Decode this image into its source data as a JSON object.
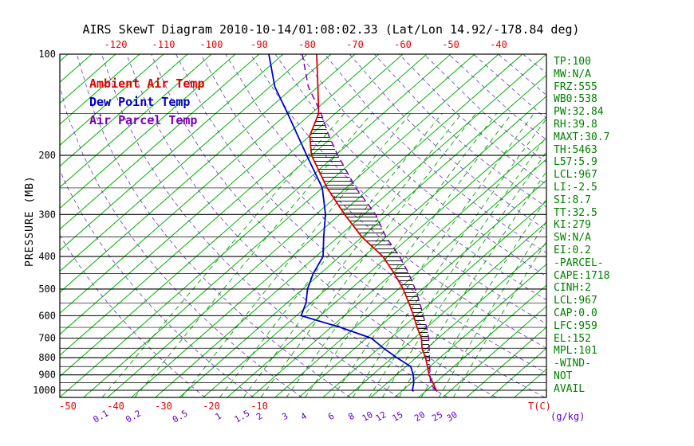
{
  "title": "AIRS SkewT Diagram 2010-10-14/01:08:02.33 (Lat/Lon 14.92/-178.84 deg)",
  "legend": [
    {
      "label": "Ambient Air Temp",
      "color": "#dd0000"
    },
    {
      "label": "Dew Point Temp",
      "color": "#0000cc"
    },
    {
      "label": "Air Parcel Temp",
      "color": "#7a00b8"
    }
  ],
  "axes": {
    "pressure_label": "PRESSURE (MB)",
    "pressure_ticks": [
      100,
      200,
      300,
      400,
      500,
      600,
      700,
      800,
      900,
      1000
    ],
    "top_temp_ticks": [
      -120,
      -110,
      -100,
      -90,
      -80,
      -70,
      -60,
      -50,
      -40
    ],
    "bottom_temp_ticks": [
      -50,
      -40,
      -30,
      -20,
      -10
    ],
    "temp_unit": "T(C)",
    "mixing_unit": "(g/kg)",
    "mixing_ratio_ticks": [
      0.1,
      0.2,
      0.5,
      1,
      1.5,
      2,
      3,
      4,
      6,
      8,
      10,
      12,
      15,
      20,
      25,
      30
    ]
  },
  "stats": [
    "TP:100",
    "MW:N/A",
    "FRZ:555",
    "WB0:538",
    "PW:32.84",
    "RH:39.8",
    "MAXT:30.7",
    "TH:5463",
    "L57:5.9",
    "LCL:967",
    "LI:-2.5",
    "SI:8.7",
    "TT:32.5",
    "KI:279",
    "SW:N/A",
    "EI:0.2",
    "-PARCEL-",
    "CAPE:1718",
    "CINH:2",
    "LCL:967",
    "CAP:0.0",
    "LFC:959",
    "EL:152",
    "MPL:101",
    "-WIND-",
    "NOT",
    "AVAIL"
  ],
  "colors": {
    "isotherm": "#00b400",
    "mixing_ratio_line": "#00a400",
    "dry_adiabat": "#6633cc",
    "isobar": "#000000",
    "frame": "#000000",
    "hatch": "#000000",
    "stats_text": "#008000",
    "top_axis_text": "#dd0000",
    "bottom_axis_text": "#dd0000",
    "mixing_label_text": "#5a00c8",
    "pressure_text": "#000000"
  },
  "chart_data": {
    "type": "line",
    "title": "AIRS SkewT Diagram 2010-10-14/01:08:02.33 (Lat/Lon 14.92/-178.84 deg)",
    "x_axis": {
      "label": "T(C)",
      "top_ticks": [
        -120,
        -110,
        -100,
        -90,
        -80,
        -70,
        -60,
        -50,
        -40
      ],
      "bottom_ticks": [
        -50,
        -40,
        -30,
        -20,
        -10
      ]
    },
    "y_axis": {
      "label": "PRESSURE (MB)",
      "scale": "log",
      "ticks": [
        100,
        200,
        300,
        400,
        500,
        600,
        700,
        800,
        900,
        1000
      ],
      "range": [
        100,
        1050
      ]
    },
    "background": {
      "isotherm_step_c": 5,
      "isotherm_range_c": [
        -130,
        45
      ],
      "dry_adiabat_theta_k": {
        "from": 250,
        "to": 460,
        "step": 10
      },
      "mixing_ratio_lines_gkg": [
        0.1,
        0.2,
        0.5,
        1,
        1.5,
        2,
        3,
        4,
        6,
        8,
        10,
        12,
        15,
        20,
        25,
        30
      ],
      "isobar_step_mb": 50,
      "grid": true
    },
    "legend_position": "top-left",
    "series": [
      {
        "name": "Ambient Air Temp",
        "color": "#dd0000",
        "style": "solid",
        "points": [
          [
            1008,
            27.5
          ],
          [
            1000,
            27
          ],
          [
            950,
            24.5
          ],
          [
            900,
            21.8
          ],
          [
            850,
            19.5
          ],
          [
            800,
            17
          ],
          [
            750,
            14
          ],
          [
            700,
            11.5
          ],
          [
            650,
            8
          ],
          [
            600,
            4.5
          ],
          [
            550,
            0.5
          ],
          [
            500,
            -4
          ],
          [
            450,
            -9.5
          ],
          [
            400,
            -16
          ],
          [
            350,
            -25
          ],
          [
            300,
            -34
          ],
          [
            250,
            -44
          ],
          [
            200,
            -55
          ],
          [
            175,
            -60
          ],
          [
            150,
            -63.5
          ],
          [
            125,
            -70
          ],
          [
            100,
            -78
          ]
        ]
      },
      {
        "name": "Dew Point Temp",
        "color": "#0000cc",
        "style": "solid",
        "points": [
          [
            1008,
            22.5
          ],
          [
            1000,
            22
          ],
          [
            950,
            20.5
          ],
          [
            900,
            18.5
          ],
          [
            850,
            16
          ],
          [
            800,
            11
          ],
          [
            750,
            6
          ],
          [
            700,
            1
          ],
          [
            650,
            -8
          ],
          [
            600,
            -19
          ],
          [
            550,
            -21
          ],
          [
            500,
            -24
          ],
          [
            450,
            -26.5
          ],
          [
            400,
            -28.5
          ],
          [
            350,
            -33
          ],
          [
            300,
            -38
          ],
          [
            250,
            -45
          ],
          [
            200,
            -56
          ],
          [
            150,
            -70
          ],
          [
            125,
            -79
          ],
          [
            100,
            -88
          ]
        ]
      },
      {
        "name": "Air Parcel Temp",
        "color": "#7a00b8",
        "style": "dashed",
        "points": [
          [
            1000,
            27
          ],
          [
            967,
            24.8
          ],
          [
            950,
            24
          ],
          [
            900,
            22
          ],
          [
            850,
            20
          ],
          [
            800,
            17.8
          ],
          [
            750,
            15.5
          ],
          [
            700,
            13
          ],
          [
            650,
            10
          ],
          [
            600,
            6.5
          ],
          [
            550,
            2.8
          ],
          [
            500,
            -1.5
          ],
          [
            450,
            -6.5
          ],
          [
            400,
            -12.5
          ],
          [
            350,
            -20
          ],
          [
            300,
            -27.5
          ],
          [
            250,
            -38
          ],
          [
            200,
            -49.5
          ],
          [
            175,
            -56
          ],
          [
            150,
            -63
          ],
          [
            125,
            -72
          ],
          [
            100,
            -81
          ]
        ]
      }
    ],
    "hatch_area": {
      "between": [
        "Air Parcel Temp",
        "Ambient Air Temp"
      ],
      "pressure_range_mb": [
        900,
        150
      ],
      "meaning": "CAPE region"
    }
  }
}
